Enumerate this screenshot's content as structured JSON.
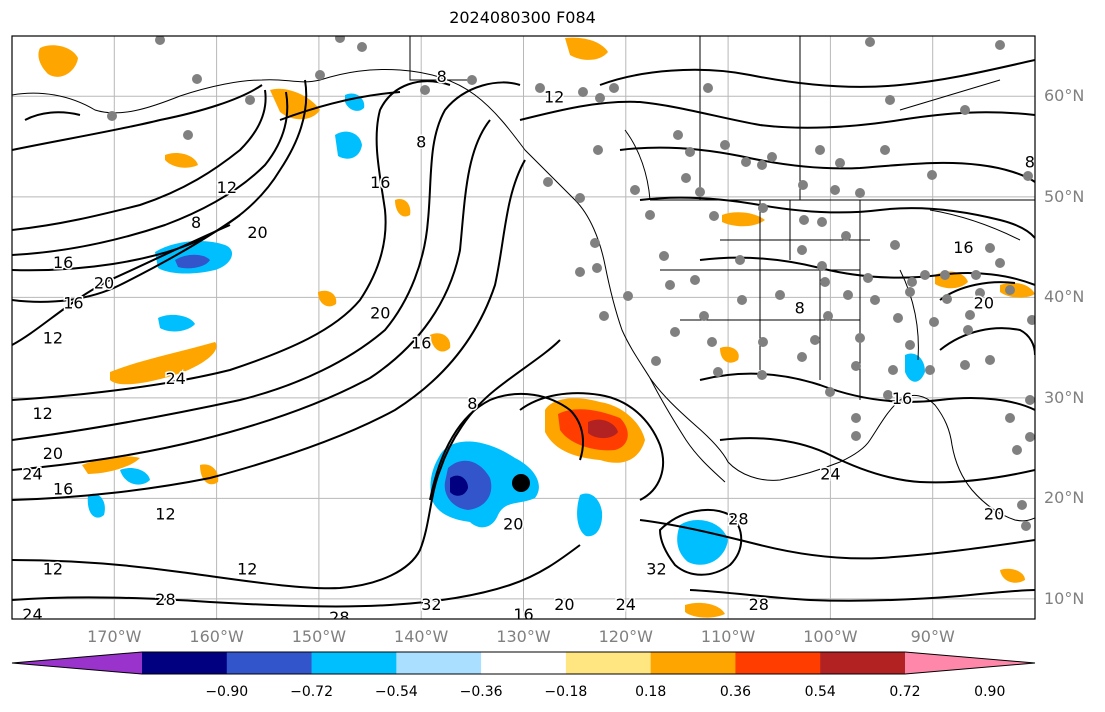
{
  "title": "2024080300 F084",
  "map_extent": {
    "lon_west": -180,
    "lon_east": -80,
    "lat_south": 8,
    "lat_north": 66
  },
  "lat_ticks": [
    {
      "value": 60,
      "label": "60°N"
    },
    {
      "value": 50,
      "label": "50°N"
    },
    {
      "value": 40,
      "label": "40°N"
    },
    {
      "value": 30,
      "label": "30°N"
    },
    {
      "value": 20,
      "label": "20°N"
    },
    {
      "value": 10,
      "label": "10°N"
    }
  ],
  "lon_ticks": [
    {
      "value": -170,
      "label": "170°W"
    },
    {
      "value": -160,
      "label": "160°W"
    },
    {
      "value": -150,
      "label": "150°W"
    },
    {
      "value": -140,
      "label": "140°W"
    },
    {
      "value": -130,
      "label": "130°W"
    },
    {
      "value": -120,
      "label": "120°W"
    },
    {
      "value": -110,
      "label": "110°W"
    },
    {
      "value": -100,
      "label": "100°W"
    },
    {
      "value": -90,
      "label": "90°W"
    }
  ],
  "colorbar": {
    "colors": [
      "#9933cc",
      "#000080",
      "#3355cc",
      "#00bfff",
      "#aadfff",
      "#ffffff",
      "#ffe680",
      "#ffa500",
      "#ff3d00",
      "#b22222",
      "#ff88aa"
    ],
    "labels": [
      "−0.90",
      "−0.72",
      "−0.54",
      "−0.36",
      "−0.18",
      "0.18",
      "0.36",
      "0.54",
      "0.72",
      "0.90"
    ]
  },
  "contour_labels": [
    {
      "text": "8",
      "lon": -162,
      "lat": 47.5
    },
    {
      "text": "12",
      "lon": -159,
      "lat": 51
    },
    {
      "text": "16",
      "lon": -175,
      "lat": 43.5
    },
    {
      "text": "20",
      "lon": -171,
      "lat": 41.5
    },
    {
      "text": "16",
      "lon": -174,
      "lat": 39.5
    },
    {
      "text": "12",
      "lon": -176,
      "lat": 36
    },
    {
      "text": "20",
      "lon": -156,
      "lat": 46.5
    },
    {
      "text": "16",
      "lon": -144,
      "lat": 51.5
    },
    {
      "text": "20",
      "lon": -144,
      "lat": 38.5
    },
    {
      "text": "16",
      "lon": -140,
      "lat": 35.5
    },
    {
      "text": "24",
      "lon": -164,
      "lat": 32
    },
    {
      "text": "12",
      "lon": -177,
      "lat": 28.5
    },
    {
      "text": "20",
      "lon": -176,
      "lat": 24.5
    },
    {
      "text": "24",
      "lon": -178,
      "lat": 22.5
    },
    {
      "text": "16",
      "lon": -175,
      "lat": 21
    },
    {
      "text": "12",
      "lon": -165,
      "lat": 18.5
    },
    {
      "text": "12",
      "lon": -157,
      "lat": 13
    },
    {
      "text": "12",
      "lon": -176,
      "lat": 13
    },
    {
      "text": "24",
      "lon": -178,
      "lat": 8.5
    },
    {
      "text": "28",
      "lon": -165,
      "lat": 10
    },
    {
      "text": "28",
      "lon": -148,
      "lat": 8.2
    },
    {
      "text": "32",
      "lon": -139,
      "lat": 9.5
    },
    {
      "text": "16",
      "lon": -130,
      "lat": 8.5
    },
    {
      "text": "20",
      "lon": -126,
      "lat": 9.5
    },
    {
      "text": "24",
      "lon": -120,
      "lat": 9.5
    },
    {
      "text": "8",
      "lon": -135,
      "lat": 29.5
    },
    {
      "text": "20",
      "lon": -131,
      "lat": 17.5
    },
    {
      "text": "28",
      "lon": -109,
      "lat": 18
    },
    {
      "text": "24",
      "lon": -100,
      "lat": 22.5
    },
    {
      "text": "28",
      "lon": -107,
      "lat": 9.5
    },
    {
      "text": "32",
      "lon": -117,
      "lat": 13
    },
    {
      "text": "20",
      "lon": -84,
      "lat": 18.5
    },
    {
      "text": "20",
      "lon": -85,
      "lat": 39.5
    },
    {
      "text": "16",
      "lon": -87,
      "lat": 45
    },
    {
      "text": "16",
      "lon": -93,
      "lat": 30
    },
    {
      "text": "12",
      "lon": -127,
      "lat": 60
    },
    {
      "text": "8",
      "lon": -138,
      "lat": 62
    },
    {
      "text": "8",
      "lon": -140,
      "lat": 55.5
    },
    {
      "text": "8",
      "lon": -80.5,
      "lat": 53.5
    },
    {
      "text": "8",
      "lon": -103,
      "lat": 39
    }
  ]
}
